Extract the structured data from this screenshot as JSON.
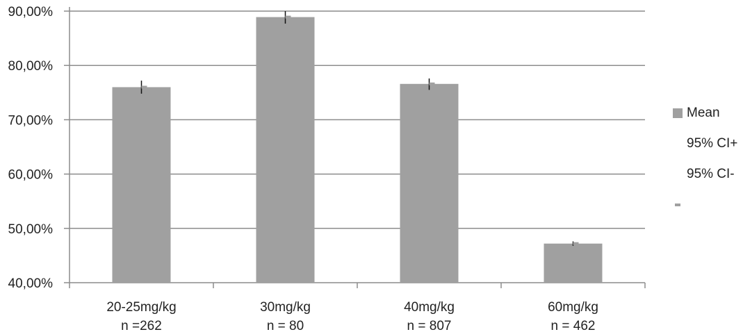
{
  "chart_data": {
    "type": "bar",
    "categories": [
      "20-25mg/kg",
      "30mg/kg",
      "40mg/kg",
      "60mg/kg"
    ],
    "category_sublabels": [
      "n =262",
      "n = 80",
      "n = 807",
      "n = 462"
    ],
    "series": [
      {
        "name": "Mean",
        "values": [
          76.0,
          88.9,
          76.6,
          47.2
        ]
      },
      {
        "name": "95% CI+",
        "values": [
          77.2,
          90.0,
          77.6,
          47.6
        ]
      },
      {
        "name": "95% CI-",
        "values": [
          74.8,
          87.7,
          75.5,
          46.8
        ]
      }
    ],
    "ylim": [
      40,
      90
    ],
    "yticks": [
      "40,00%",
      "50,00%",
      "60,00%",
      "70,00%",
      "80,00%",
      "90,00%"
    ],
    "grid": true,
    "legend_position": "right",
    "colors": {
      "bar": "#a0a0a0",
      "grid": "#8c8c8c",
      "axis": "#8c8c8c",
      "errorbar": "#111111"
    }
  },
  "legend": {
    "items": [
      "Mean",
      "95% CI+",
      "95% CI-",
      ""
    ]
  }
}
